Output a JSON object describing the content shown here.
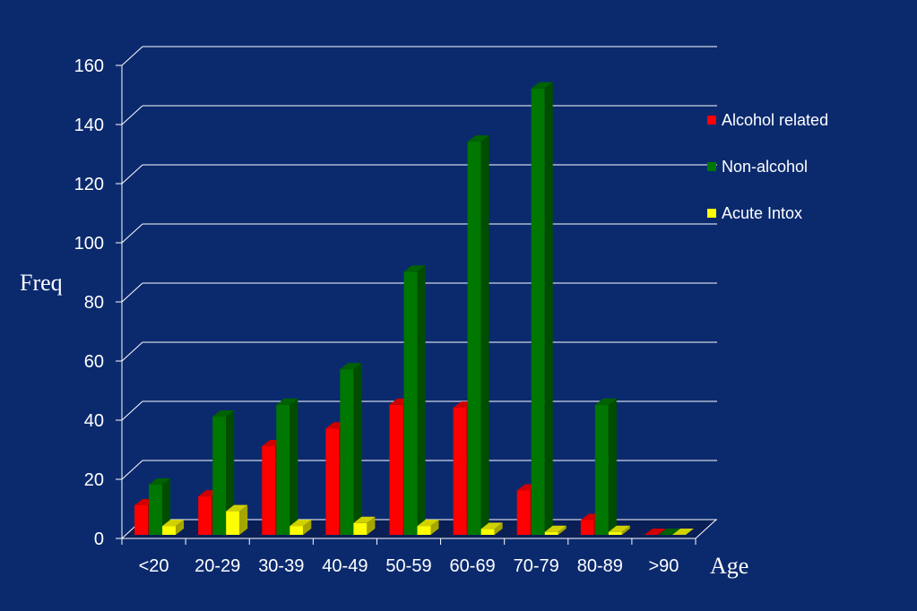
{
  "chart_data": {
    "type": "bar",
    "categories": [
      "<20",
      "20-29",
      "30-39",
      "40-49",
      "50-59",
      "60-69",
      "70-79",
      "80-89",
      ">90"
    ],
    "series": [
      {
        "name": "Alcohol related",
        "values": [
          10,
          13,
          30,
          36,
          44,
          43,
          15,
          5,
          0
        ],
        "color": "#ff0000"
      },
      {
        "name": "Non-alcohol",
        "values": [
          17,
          40,
          44,
          56,
          89,
          133,
          151,
          44,
          0
        ],
        "color": "#007700"
      },
      {
        "name": "Acute Intox",
        "values": [
          3,
          8,
          3,
          4,
          3,
          2,
          1,
          1,
          0
        ],
        "color": "#ffff00"
      }
    ],
    "ylim": [
      0,
      160
    ],
    "yticks": [
      "0",
      "20",
      "40",
      "60",
      "80",
      "100",
      "120",
      "140",
      "160"
    ],
    "xlabel": "Age",
    "ylabel": "Freq",
    "grid": true,
    "legend_position": "right",
    "style": "3d-clustered-bar"
  },
  "colors": {
    "background": "#0b2a6e",
    "gridline": "#ffffff",
    "text": "#ffffff"
  }
}
